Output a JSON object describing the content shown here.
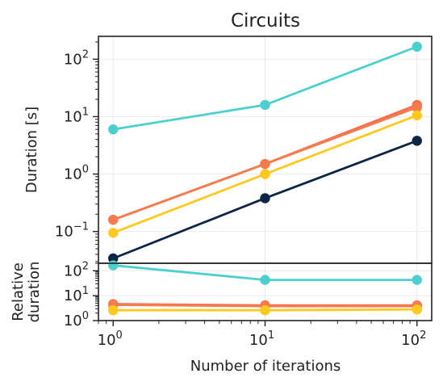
{
  "chart_data": [
    {
      "type": "line",
      "title": "Circuits",
      "ylabel": "Duration [s]",
      "xlabel": "",
      "x_scale": "log",
      "y_scale": "log",
      "xlim": [
        0.8,
        125
      ],
      "ylim": [
        0.028,
        250
      ],
      "grid": true,
      "x": [
        1,
        10,
        100
      ],
      "series": [
        {
          "color": "#4ecfcf",
          "values": [
            6.0,
            16.0,
            165.0
          ]
        },
        {
          "color": "#ff6a4d",
          "values": [
            0.16,
            1.5,
            16.0
          ]
        },
        {
          "color": "#f47c4c",
          "values": [
            0.16,
            1.5,
            14.5
          ]
        },
        {
          "color": "#ffc81f",
          "values": [
            0.095,
            1.0,
            10.5
          ]
        },
        {
          "color": "#0b2545",
          "values": [
            0.034,
            0.38,
            3.8
          ]
        }
      ],
      "y_ticks": [
        {
          "value": 0.1,
          "base": "10",
          "exp": "−1"
        },
        {
          "value": 1,
          "base": "10",
          "exp": "0",
          "plain": "10",
          "plain_exp": "0"
        },
        {
          "value": 10,
          "base": "10",
          "exp": "1"
        },
        {
          "value": 100,
          "base": "10",
          "exp": "2"
        }
      ]
    },
    {
      "type": "line",
      "title": "",
      "ylabel": "Relative duration",
      "ylabel_lines": [
        "Relative",
        "duration"
      ],
      "xlabel": "Number of iterations",
      "x_scale": "log",
      "y_scale": "log",
      "xlim": [
        0.8,
        125
      ],
      "ylim": [
        1,
        200
      ],
      "grid": true,
      "x": [
        1,
        10,
        100
      ],
      "series": [
        {
          "color": "#4ecfcf",
          "values": [
            165,
            43,
            43
          ]
        },
        {
          "color": "#ff6a4d",
          "values": [
            4.6,
            4.1,
            4.1
          ]
        },
        {
          "color": "#f47c4c",
          "values": [
            4.3,
            3.8,
            3.8
          ]
        },
        {
          "color": "#ffc81f",
          "values": [
            2.6,
            2.6,
            2.8
          ]
        }
      ],
      "y_ticks": [
        {
          "value": 1,
          "base": "10",
          "exp": "0"
        },
        {
          "value": 10,
          "base": "10",
          "exp": "1"
        },
        {
          "value": 100,
          "base": "10",
          "exp": "2"
        }
      ],
      "x_ticks": [
        {
          "value": 1,
          "base": "10",
          "exp": "0"
        },
        {
          "value": 10,
          "base": "10",
          "exp": "1"
        },
        {
          "value": 100,
          "base": "10",
          "exp": "2"
        }
      ]
    }
  ]
}
